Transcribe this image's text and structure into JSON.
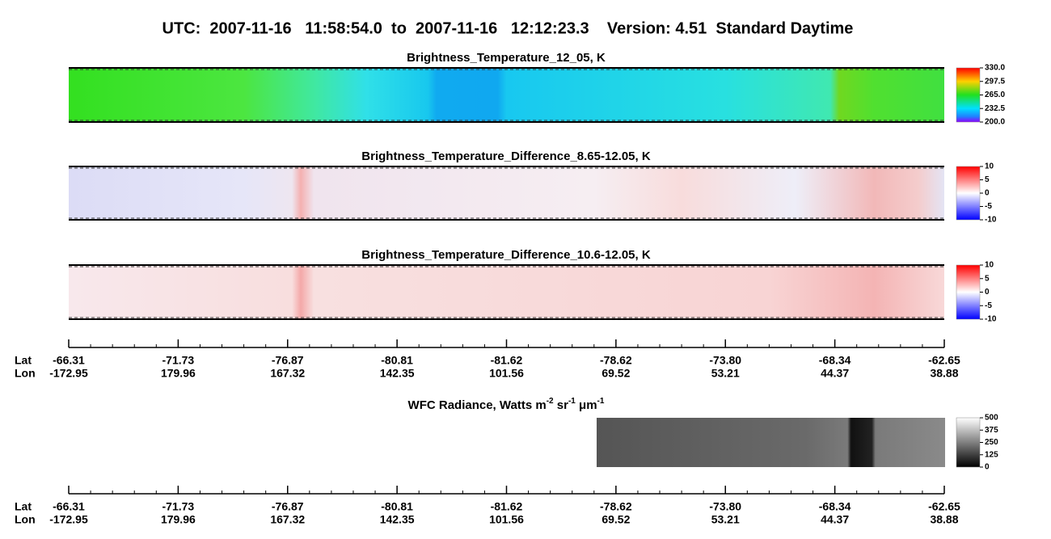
{
  "title": "UTC:  2007-11-16   11:58:54.0  to  2007-11-16   12:12:23.3    Version: 4.51  Standard Daytime",
  "chart_data": [
    {
      "type": "heatmap",
      "title": "Brightness_Temperature_12_05, K",
      "colorbar": {
        "lim": [
          200,
          330
        ],
        "ticks": [
          {
            "value": 330,
            "label": "330.0"
          },
          {
            "value": 297.5,
            "label": "297.5"
          },
          {
            "value": 265,
            "label": "265.0"
          },
          {
            "value": 232.5,
            "label": "232.5"
          },
          {
            "value": 200,
            "label": "200.0"
          }
        ]
      }
    },
    {
      "type": "heatmap",
      "title": "Brightness_Temperature_Difference_8.65-12.05, K",
      "colorbar": {
        "lim": [
          -10,
          10
        ],
        "ticks": [
          10,
          5,
          0,
          -5,
          -10
        ]
      }
    },
    {
      "type": "heatmap",
      "title": "Brightness_Temperature_Difference_10.6-12.05, K",
      "colorbar": {
        "lim": [
          -10,
          10
        ],
        "ticks": [
          10,
          5,
          0,
          -5,
          -10
        ]
      }
    },
    {
      "type": "image",
      "title_parts": [
        "WFC Radiance, Watts m",
        "-2",
        " sr",
        "-1",
        " μm",
        "-1"
      ],
      "colorbar": {
        "lim": [
          0,
          500
        ],
        "ticks": [
          500,
          375,
          250,
          125,
          0
        ]
      }
    }
  ],
  "x_axes": [
    {
      "lat_label": "Lat",
      "lon_label": "Lon",
      "lat": [
        "-66.31",
        "-71.73",
        "-76.87",
        "-80.81",
        "-81.62",
        "-78.62",
        "-73.80",
        "-68.34",
        "-62.65"
      ],
      "lon": [
        "-172.95",
        "179.96",
        "167.32",
        "142.35",
        "101.56",
        "69.52",
        "53.21",
        "44.37",
        "38.88"
      ]
    },
    {
      "lat_label": "Lat",
      "lon_label": "Lon",
      "lat": [
        "-66.31",
        "-71.73",
        "-76.87",
        "-80.81",
        "-81.62",
        "-78.62",
        "-73.80",
        "-68.34",
        "-62.65"
      ],
      "lon": [
        "-172.95",
        "179.96",
        "167.32",
        "142.35",
        "101.56",
        "69.52",
        "53.21",
        "44.37",
        "38.88"
      ]
    }
  ]
}
